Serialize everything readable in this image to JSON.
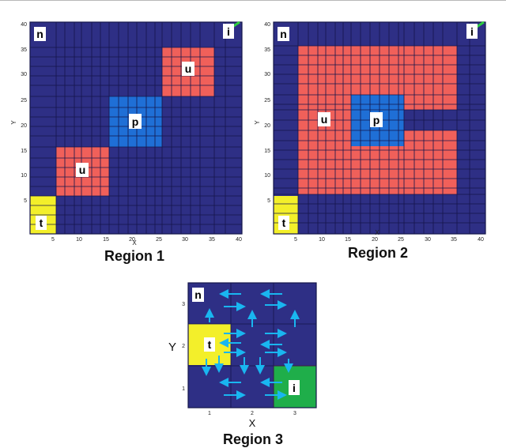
{
  "panels": [
    {
      "id": "region1",
      "caption": "Region 1",
      "x_label": "X",
      "y_label": "Y",
      "x_ticks": [
        "5",
        "10",
        "15",
        "20",
        "25",
        "30",
        "35",
        "40"
      ],
      "y_ticks": [
        "5",
        "10",
        "15",
        "20",
        "25",
        "30",
        "35",
        "40"
      ],
      "blocks": [
        {
          "label": "n",
          "color": "none"
        },
        {
          "label": "i",
          "color": "none"
        },
        {
          "label": "t",
          "color": "#f3ef2a"
        },
        {
          "label": "u",
          "color": "#f0605a"
        },
        {
          "label": "p",
          "color": "#1f6fd6"
        },
        {
          "label": "u",
          "color": "#f0605a"
        }
      ]
    },
    {
      "id": "region2",
      "caption": "Region 2",
      "x_label": "X",
      "y_label": "Y",
      "x_ticks": [
        "5",
        "10",
        "15",
        "20",
        "25",
        "30",
        "35",
        "40"
      ],
      "y_ticks": [
        "5",
        "10",
        "15",
        "20",
        "25",
        "30",
        "35",
        "40"
      ],
      "blocks": [
        {
          "label": "n",
          "color": "none"
        },
        {
          "label": "i",
          "color": "none"
        },
        {
          "label": "t",
          "color": "#f3ef2a"
        },
        {
          "label": "u",
          "color": "#f0605a"
        },
        {
          "label": "p",
          "color": "#1f6fd6"
        }
      ]
    },
    {
      "id": "region3",
      "caption": "Region 3",
      "x_label": "X",
      "y_label": "Y",
      "x_ticks": [
        "1",
        "2",
        "3"
      ],
      "y_ticks": [
        "1",
        "2",
        "3"
      ],
      "blocks": [
        {
          "label": "n",
          "color": "none"
        },
        {
          "label": "t",
          "color": "#f3ef2a"
        },
        {
          "label": "i",
          "color": "#1fae4a"
        }
      ]
    }
  ],
  "colors": {
    "background": "#2e2f85",
    "grid_line": "#15164a",
    "arrow": "#19b6f0",
    "label_box": "#ffffff"
  }
}
